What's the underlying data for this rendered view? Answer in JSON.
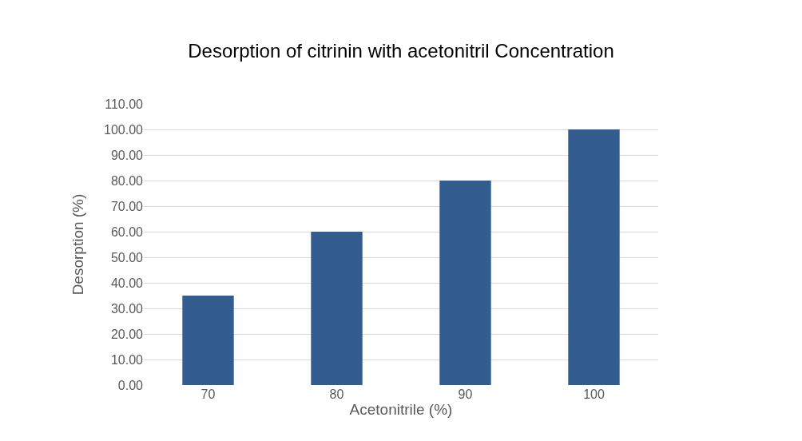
{
  "chart_data": {
    "type": "bar",
    "title": "Desorption of citrinin with acetonitril Concentration",
    "xlabel": "Acetonitrile (%)",
    "ylabel": "Desorption (%)",
    "categories": [
      "70",
      "80",
      "90",
      "100"
    ],
    "values": [
      35,
      60,
      80,
      100
    ],
    "color": "#335d91",
    "ylim": [
      0,
      110
    ],
    "yticks": [
      {
        "value": 0,
        "label": "0.00"
      },
      {
        "value": 10,
        "label": "10.00"
      },
      {
        "value": 20,
        "label": "20.00"
      },
      {
        "value": 30,
        "label": "30.00"
      },
      {
        "value": 40,
        "label": "40.00"
      },
      {
        "value": 50,
        "label": "50.00"
      },
      {
        "value": 60,
        "label": "60.00"
      },
      {
        "value": 70,
        "label": "70.00"
      },
      {
        "value": 80,
        "label": "80.00"
      },
      {
        "value": 90,
        "label": "90.00"
      },
      {
        "value": 100,
        "label": "100.00"
      },
      {
        "value": 110,
        "label": "110.00"
      }
    ],
    "grid": "y"
  }
}
